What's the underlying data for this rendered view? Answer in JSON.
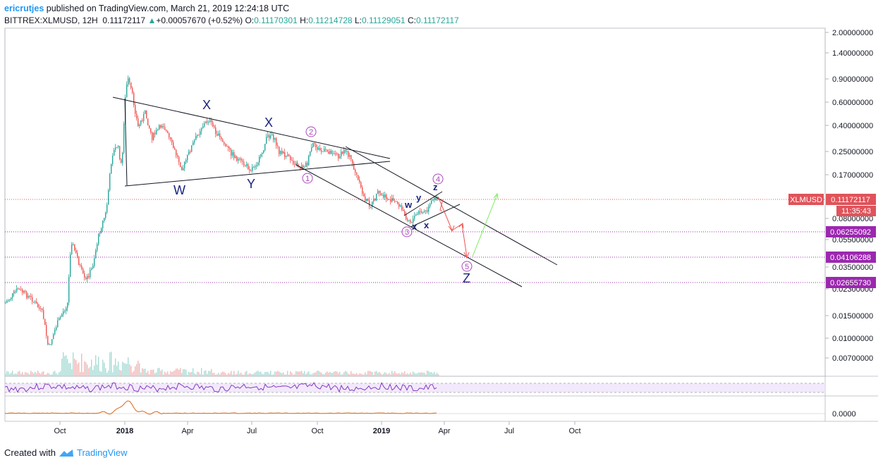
{
  "header": {
    "author": "ericrutjes",
    "published": " published on TradingView.com, March 21, 2019 12:24:18 UTC",
    "symbol": "BITTREX:XLMUSD, 12H",
    "last": "0.11172117",
    "change": "+0.00057670 (+0.52%)",
    "open_label": "O:",
    "open": "0.11170301",
    "high_label": "H:",
    "high": "0.11214728",
    "low_label": "L:",
    "low": "0.11129051",
    "close_label": "C:",
    "close": "0.11172117"
  },
  "footer": {
    "created_with": "Created with",
    "brand": "TradingView"
  },
  "chart_data": {
    "type": "line",
    "title": "BITTREX:XLMUSD, 12H",
    "scale": "log",
    "price_axis_ticks": [
      "2.00000000",
      "1.40000000",
      "0.90000000",
      "0.60000000",
      "0.40000000",
      "0.25000000",
      "0.17000000",
      "0.08000000",
      "0.05500000",
      "0.03500000",
      "0.02300000",
      "0.01500000",
      "0.01000000",
      "0.00700000"
    ],
    "time_axis_ticks": [
      "Oct",
      "2018",
      "Apr",
      "Jul",
      "Oct",
      "2019",
      "Apr",
      "Jul",
      "Oct"
    ],
    "current_price_label": "XLMUSD",
    "current_price": "0.11172117",
    "countdown": "11:35:43",
    "horizontal_levels": [
      "0.06255092",
      "0.04106288",
      "0.02655730"
    ],
    "oscillator_axis": "0.0000",
    "wave_labels": [
      "X",
      "X",
      "W",
      "Y",
      "1",
      "2",
      "3",
      "4",
      "5",
      "w",
      "x",
      "x",
      "y",
      "z",
      "Z"
    ]
  },
  "colors": {
    "up": "#26a69a",
    "down": "#ef5350",
    "label_red": "#e0535a",
    "level": "#9c27b0",
    "wave": "#1a237e",
    "wave_circle": "#ab47bc"
  }
}
